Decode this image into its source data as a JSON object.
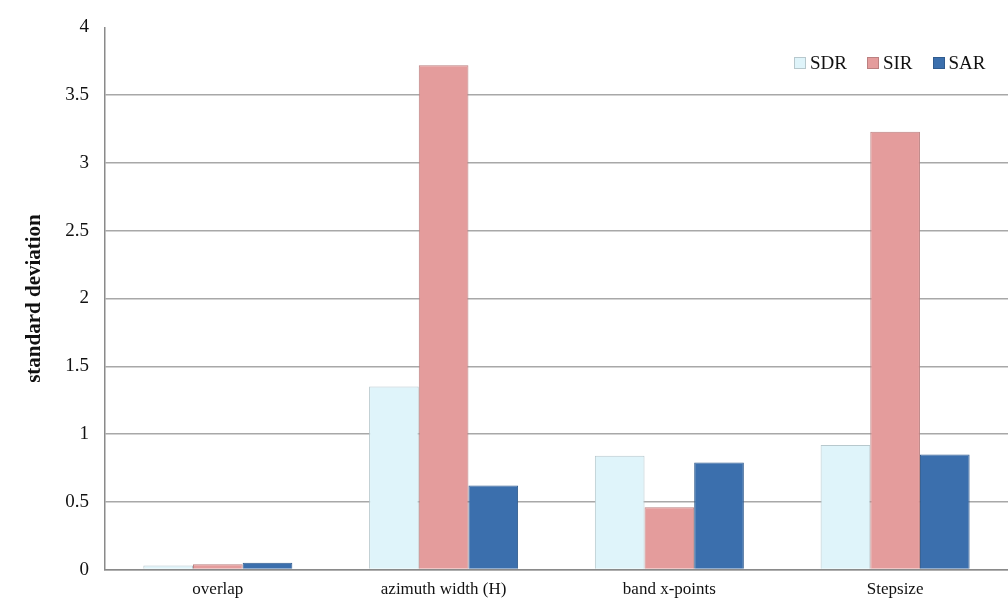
{
  "chart_data": {
    "type": "bar",
    "ylabel": "standard deviation",
    "categories": [
      "overlap",
      "azimuth width (H)",
      "band x-points",
      "Stepsize"
    ],
    "series": [
      {
        "name": "SDR",
        "color": "#dff4fa",
        "values": [
          0.03,
          1.35,
          0.84,
          0.92
        ]
      },
      {
        "name": "SIR",
        "color": "#e49c9c",
        "values": [
          0.04,
          3.72,
          0.46,
          3.23
        ]
      },
      {
        "name": "SAR",
        "color": "#3b6fad",
        "values": [
          0.05,
          0.62,
          0.79,
          0.85
        ]
      }
    ],
    "ylim": [
      0,
      4
    ],
    "yticks": [
      0,
      0.5,
      1,
      1.5,
      2,
      2.5,
      3,
      3.5,
      4
    ],
    "grid": "y",
    "legend": "top right"
  }
}
